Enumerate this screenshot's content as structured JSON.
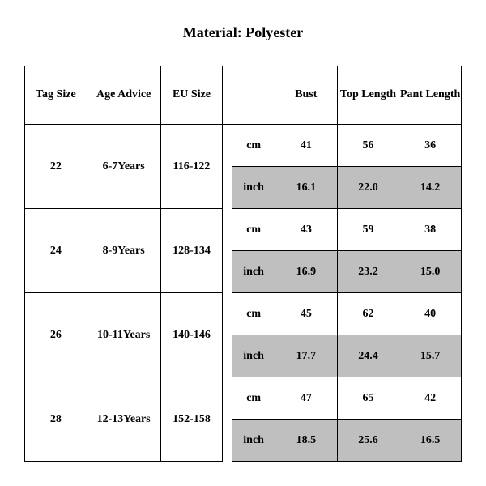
{
  "title": "Material: Polyester",
  "table": {
    "type": "table",
    "columns": {
      "tag_size": "Tag Size",
      "age_advice": "Age Advice",
      "eu_size": "EU Size",
      "bust": "Bust",
      "top_length": "Top Length",
      "pant_length": "Pant Length"
    },
    "unit_labels": {
      "cm": "cm",
      "inch": "inch"
    },
    "rows": [
      {
        "tag_size": "22",
        "age_advice": "6-7Years",
        "eu_size": "116-122",
        "cm": {
          "bust": "41",
          "top_length": "56",
          "pant_length": "36"
        },
        "inch": {
          "bust": "16.1",
          "top_length": "22.0",
          "pant_length": "14.2"
        }
      },
      {
        "tag_size": "24",
        "age_advice": "8-9Years",
        "eu_size": "128-134",
        "cm": {
          "bust": "43",
          "top_length": "59",
          "pant_length": "38"
        },
        "inch": {
          "bust": "16.9",
          "top_length": "23.2",
          "pant_length": "15.0"
        }
      },
      {
        "tag_size": "26",
        "age_advice": "10-11Years",
        "eu_size": "140-146",
        "cm": {
          "bust": "45",
          "top_length": "62",
          "pant_length": "40"
        },
        "inch": {
          "bust": "17.7",
          "top_length": "24.4",
          "pant_length": "15.7"
        }
      },
      {
        "tag_size": "28",
        "age_advice": "12-13Years",
        "eu_size": "152-158",
        "cm": {
          "bust": "47",
          "top_length": "65",
          "pant_length": "42"
        },
        "inch": {
          "bust": "18.5",
          "top_length": "25.6",
          "pant_length": "16.5"
        }
      }
    ],
    "colors": {
      "background": "#ffffff",
      "border": "#000000",
      "shaded": "#bfbfbf",
      "text": "#000000"
    },
    "font": {
      "family": "Times New Roman",
      "header_size_pt": 14,
      "cell_size_pt": 14,
      "weight": "bold"
    }
  }
}
